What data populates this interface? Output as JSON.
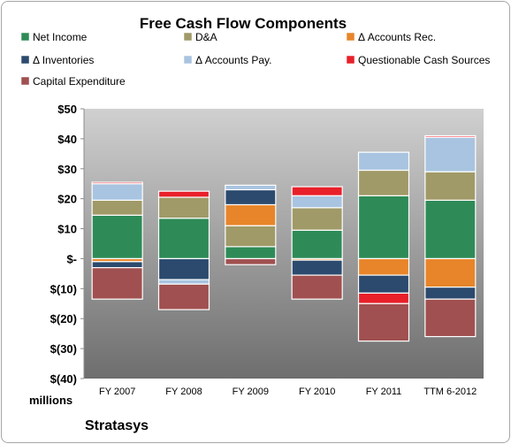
{
  "chart_data": {
    "type": "bar",
    "stacked": true,
    "title": "Free Cash Flow Components",
    "ylabel": "millions",
    "ylim": [
      -40,
      50
    ],
    "yticks": [
      50,
      40,
      30,
      20,
      10,
      0,
      -10,
      -20,
      -30,
      -40
    ],
    "ytick_labels": [
      "$50",
      "$40",
      "$30",
      "$20",
      "$10",
      "$-",
      "$(10)",
      "$(20)",
      "$(30)",
      "$(40)"
    ],
    "categories": [
      "FY 2007",
      "FY 2008",
      "FY 2009",
      "FY 2010",
      "FY 2011",
      "TTM 6-2012"
    ],
    "legend_position": "top",
    "grid": false,
    "series": [
      {
        "name": "Net Income",
        "color": "#2e8b57",
        "values": [
          14.5,
          13.5,
          4.0,
          9.5,
          21.0,
          19.5
        ]
      },
      {
        "name": "D&A",
        "color": "#a09a68",
        "values": [
          5.0,
          7.0,
          7.0,
          7.5,
          8.5,
          9.5
        ]
      },
      {
        "name": "Δ Accounts Rec.",
        "color": "#e8852a",
        "values": [
          -1.0,
          0.0,
          7.0,
          -0.5,
          -5.5,
          -9.5
        ]
      },
      {
        "name": "Δ Inventories",
        "color": "#2c4a6e",
        "values": [
          -2.0,
          -7.0,
          5.0,
          -5.0,
          -6.0,
          -4.0
        ]
      },
      {
        "name": "Δ Accounts Pay.",
        "color": "#a9c4e0",
        "values": [
          5.5,
          -1.5,
          1.5,
          4.0,
          6.0,
          11.5
        ]
      },
      {
        "name": "Questionable Cash Sources",
        "color": "#e8202a",
        "values": [
          0.5,
          2.0,
          0.0,
          3.0,
          -3.5,
          0.5
        ]
      },
      {
        "name": "Capital Expenditure",
        "color": "#a05050",
        "values": [
          -10.5,
          -8.5,
          -2.0,
          -8.0,
          -12.5,
          -12.5
        ]
      }
    ]
  },
  "footer": {
    "company": "Stratasys"
  }
}
